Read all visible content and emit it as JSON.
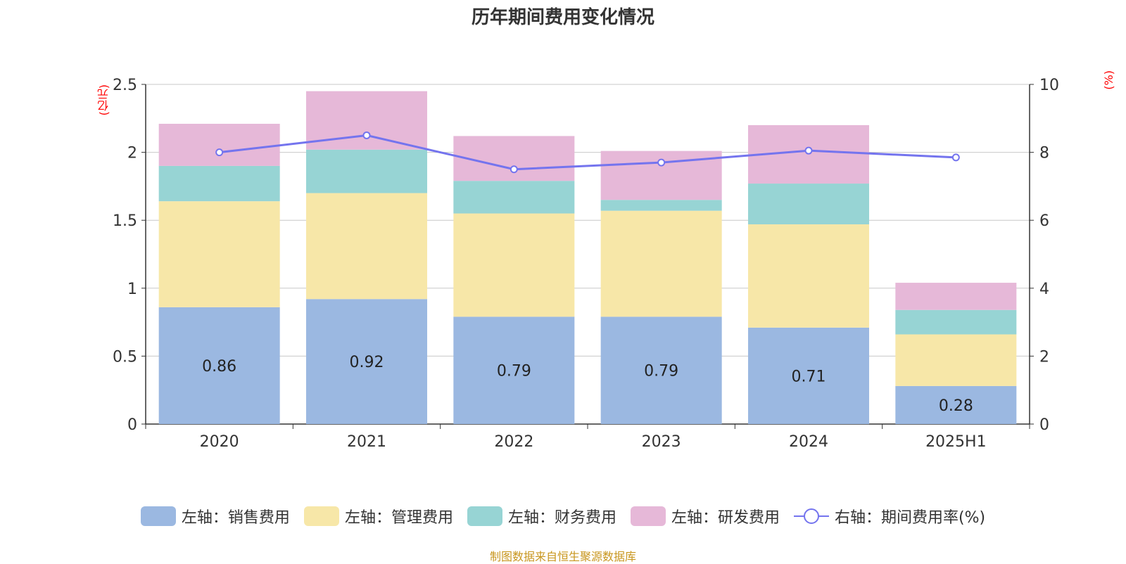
{
  "chart_data": {
    "type": "bar",
    "stacked": true,
    "title": "历年期间费用变化情况",
    "categories": [
      "2020",
      "2021",
      "2022",
      "2023",
      "2024",
      "2025H1"
    ],
    "y_left": {
      "unit": "(亿元)",
      "lim": [
        0,
        2.5
      ],
      "ticks": [
        "0",
        "0.5",
        "1",
        "1.5",
        "2",
        "2.5"
      ],
      "tick_values": [
        0,
        0.5,
        1,
        1.5,
        2,
        2.5
      ]
    },
    "y_right": {
      "unit": "(%)",
      "lim": [
        0,
        10
      ],
      "ticks": [
        "0",
        "2",
        "4",
        "6",
        "8",
        "10"
      ],
      "tick_values": [
        0,
        2,
        4,
        6,
        8,
        10
      ]
    },
    "grid": true,
    "legend_position": "bottom",
    "series": [
      {
        "name": "左轴：销售费用",
        "axis": "left",
        "color": "#9bb8e1",
        "values": [
          0.86,
          0.92,
          0.79,
          0.79,
          0.71,
          0.28
        ],
        "labels": [
          "0.86",
          "0.92",
          "0.79",
          "0.79",
          "0.71",
          "0.28"
        ]
      },
      {
        "name": "左轴：管理费用",
        "axis": "left",
        "color": "#f7e7a8",
        "values": [
          0.78,
          0.78,
          0.76,
          0.78,
          0.76,
          0.38
        ]
      },
      {
        "name": "左轴：财务费用",
        "axis": "left",
        "color": "#97d4d4",
        "values": [
          0.26,
          0.32,
          0.24,
          0.08,
          0.3,
          0.18
        ]
      },
      {
        "name": "左轴：研发费用",
        "axis": "left",
        "color": "#e6b8d8",
        "values": [
          0.31,
          0.43,
          0.33,
          0.36,
          0.43,
          0.2
        ]
      },
      {
        "name": "右轴：期间费用率(%)",
        "axis": "right",
        "type": "line",
        "color": "#7474ee",
        "values": [
          8.0,
          8.5,
          7.5,
          7.7,
          8.05,
          7.85
        ]
      }
    ]
  },
  "source": "制图数据来自恒生聚源数据库"
}
